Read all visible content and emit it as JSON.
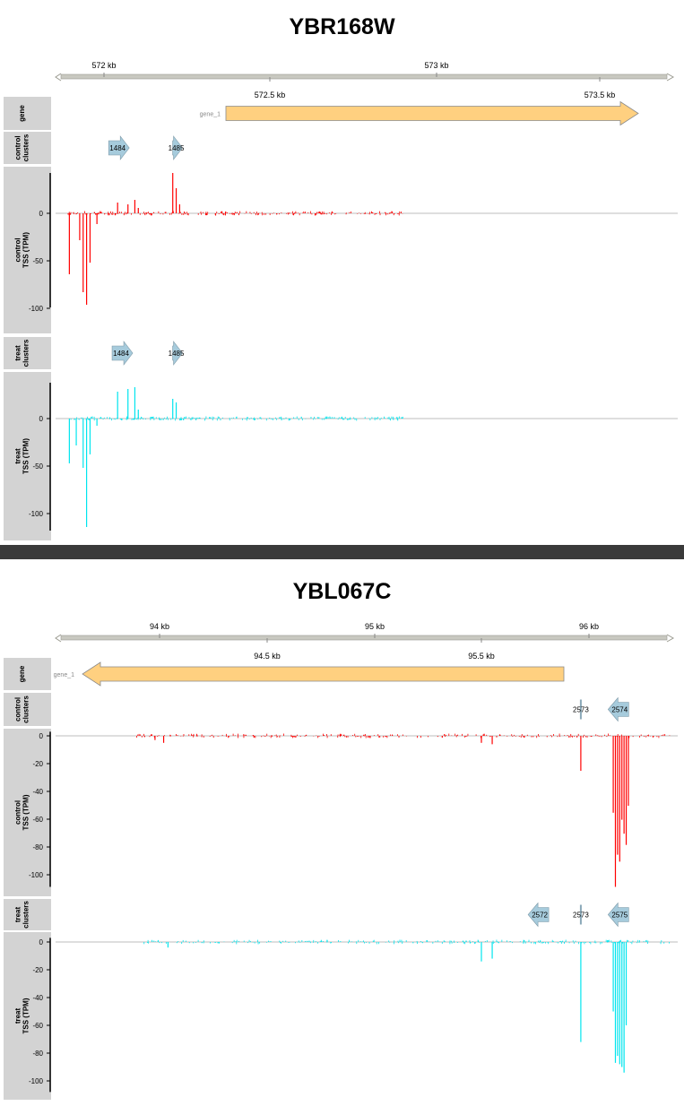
{
  "panels": [
    {
      "title": "YBR168W",
      "axis": {
        "ticks_top": [
          "572 kb",
          "573 kb"
        ],
        "ticks_bottom": [
          "572.5 kb",
          "573.5 kb"
        ],
        "range_kb": [
          571.88,
          573.68
        ],
        "arrow_left": true,
        "arrow_right": true
      },
      "gene": {
        "label": "gene_1",
        "start_kb": 572.22,
        "end_kb": 573.58,
        "strand": "+"
      },
      "tracks": {
        "gene": "gene",
        "control_clusters": "control\nclusters",
        "control_tss": "control\nTSS (TPM)",
        "treat_clusters": "treat\nclusters",
        "treat_tss": "treat\nTSS (TPM)"
      },
      "control_clusters": [
        {
          "id": "1484",
          "center_kb": 572.06,
          "strand": "+"
        },
        {
          "id": "1485",
          "center_kb": 572.23,
          "strand": "+"
        }
      ],
      "treat_clusters": [
        {
          "id": "1484",
          "center_kb": 572.07,
          "strand": "+"
        },
        {
          "id": "1485",
          "center_kb": 572.23,
          "strand": "+"
        }
      ],
      "control_yticks": [
        "0",
        "-50",
        "-100"
      ],
      "treat_yticks": [
        "0",
        "-50",
        "-100"
      ],
      "colors": {
        "control": "#ff0000",
        "treat": "#00e5ee",
        "gene": "#ffd080",
        "cluster": "#a6cbdc"
      }
    },
    {
      "title": "YBL067C",
      "axis": {
        "ticks_top": [
          "94 kb",
          "95 kb",
          "96 kb"
        ],
        "ticks_bottom": [
          "94.5 kb",
          "95.5 kb"
        ],
        "range_kb": [
          93.53,
          96.4
        ],
        "arrow_left": true,
        "arrow_right": true
      },
      "gene": {
        "label": "gene_1",
        "start_kb": 93.5,
        "end_kb": 95.88,
        "strand": "-"
      },
      "tracks": {
        "gene": "gene",
        "control_clusters": "control\nclusters",
        "control_tss": "control\nTSS (TPM)",
        "treat_clusters": "treat\nclusters",
        "treat_tss": "treat\nTSS (TPM)"
      },
      "control_clusters": [
        {
          "id": "2573",
          "center_kb": 95.96,
          "strand": "-"
        },
        {
          "id": "2574",
          "center_kb": 96.14,
          "strand": "-"
        }
      ],
      "treat_clusters": [
        {
          "id": "2572",
          "center_kb": 95.77,
          "strand": "-"
        },
        {
          "id": "2573",
          "center_kb": 95.96,
          "strand": "-"
        },
        {
          "id": "2575",
          "center_kb": 96.14,
          "strand": "-"
        }
      ],
      "control_yticks": [
        "0",
        "-20",
        "-40",
        "-60",
        "-80",
        "-100"
      ],
      "treat_yticks": [
        "0",
        "-20",
        "-40",
        "-60",
        "-80",
        "-100"
      ],
      "colors": {
        "control": "#ff0000",
        "treat": "#00e5ee",
        "gene": "#ffd080",
        "cluster": "#a6cbdc"
      }
    }
  ],
  "chart_data": [
    {
      "type": "bar",
      "title": "YBR168W",
      "xlabel": "",
      "ylabel": "control TSS (TPM)",
      "series": [
        {
          "name": "control",
          "x_kb": [
            571.92,
            571.95,
            571.96,
            571.97,
            571.98,
            572.0,
            572.06,
            572.09,
            572.11,
            572.12,
            572.22,
            572.23,
            572.24
          ],
          "values": [
            -68,
            -30,
            -88,
            -102,
            -55,
            -12,
            12,
            10,
            15,
            6,
            45,
            28,
            10
          ]
        },
        {
          "name": "treat",
          "x_kb": [
            571.92,
            571.94,
            571.96,
            571.97,
            571.98,
            572.0,
            572.06,
            572.09,
            572.11,
            572.12,
            572.22,
            572.23
          ],
          "values": [
            -50,
            -30,
            -55,
            -121,
            -40,
            -8,
            30,
            33,
            35,
            10,
            22,
            18
          ]
        }
      ],
      "ylim": [
        -115,
        40
      ]
    },
    {
      "type": "bar",
      "title": "YBL067C",
      "xlabel": "",
      "ylabel": "control TSS (TPM)",
      "series": [
        {
          "name": "control",
          "x_kb": [
            93.99,
            94.03,
            95.5,
            95.55,
            95.96,
            96.11,
            96.12,
            96.13,
            96.14,
            96.15,
            96.16,
            96.17,
            96.18
          ],
          "values": [
            -3,
            -5,
            -5,
            -6,
            -25,
            -55,
            -108,
            -85,
            -90,
            -60,
            -70,
            -78,
            -50
          ]
        },
        {
          "name": "treat",
          "x_kb": [
            94.05,
            95.5,
            95.55,
            95.96,
            96.11,
            96.12,
            96.13,
            96.14,
            96.15,
            96.16,
            96.17
          ],
          "values": [
            -4,
            -14,
            -12,
            -72,
            -50,
            -87,
            -82,
            -88,
            -90,
            -94,
            -60
          ]
        }
      ],
      "ylim": [
        -108,
        2
      ]
    }
  ]
}
